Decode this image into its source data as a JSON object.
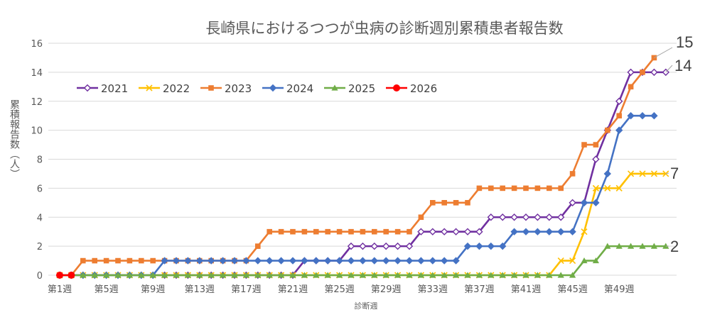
{
  "chart_data": {
    "type": "line",
    "title": "長崎県におけるつつが虫病の診断週別累積患者報告数",
    "xlabel": "診断週",
    "ylabel": "累積報告数（人）",
    "ylim": [
      0,
      16
    ],
    "yticks": [
      0,
      2,
      4,
      6,
      8,
      10,
      12,
      14,
      16
    ],
    "grid": true,
    "legend": "top-left",
    "x_tick_labels": [
      {
        "week": 1,
        "label": "第1週"
      },
      {
        "week": 5,
        "label": "第5週"
      },
      {
        "week": 9,
        "label": "第9週"
      },
      {
        "week": 13,
        "label": "第13週"
      },
      {
        "week": 17,
        "label": "第17週"
      },
      {
        "week": 21,
        "label": "第21週"
      },
      {
        "week": 25,
        "label": "第25週"
      },
      {
        "week": 29,
        "label": "第29週"
      },
      {
        "week": 33,
        "label": "第33週"
      },
      {
        "week": 37,
        "label": "第37週"
      },
      {
        "week": 41,
        "label": "第41週"
      },
      {
        "week": 45,
        "label": "第45週"
      },
      {
        "week": 49,
        "label": "第49週"
      }
    ],
    "end_labels": [
      {
        "text": "15",
        "series": "2023"
      },
      {
        "text": "14",
        "series": "2021"
      },
      {
        "text": "7",
        "series": "2022"
      },
      {
        "text": "2",
        "series": "2025"
      }
    ],
    "series": [
      {
        "name": "2021",
        "color": "#7030a0",
        "marker": "diamond-open",
        "start_week": 1,
        "values": [
          0,
          0,
          0,
          0,
          0,
          0,
          0,
          0,
          0,
          0,
          0,
          0,
          0,
          0,
          0,
          0,
          0,
          0,
          0,
          0,
          0,
          1,
          1,
          1,
          1,
          2,
          2,
          2,
          2,
          2,
          2,
          3,
          3,
          3,
          3,
          3,
          3,
          4,
          4,
          4,
          4,
          4,
          4,
          4,
          5,
          5,
          8,
          10,
          12,
          14,
          14,
          14,
          14
        ]
      },
      {
        "name": "2022",
        "color": "#ffc000",
        "marker": "x",
        "start_week": 1,
        "values": [
          0,
          0,
          0,
          0,
          0,
          0,
          0,
          0,
          0,
          0,
          0,
          0,
          0,
          0,
          0,
          0,
          0,
          0,
          0,
          0,
          0,
          0,
          0,
          0,
          0,
          0,
          0,
          0,
          0,
          0,
          0,
          0,
          0,
          0,
          0,
          0,
          0,
          0,
          0,
          0,
          0,
          0,
          0,
          1,
          1,
          3,
          6,
          6,
          6,
          7,
          7,
          7,
          7
        ]
      },
      {
        "name": "2023",
        "color": "#ed7d31",
        "marker": "square",
        "start_week": 1,
        "values": [
          0,
          0,
          1,
          1,
          1,
          1,
          1,
          1,
          1,
          1,
          1,
          1,
          1,
          1,
          1,
          1,
          1,
          2,
          3,
          3,
          3,
          3,
          3,
          3,
          3,
          3,
          3,
          3,
          3,
          3,
          3,
          4,
          5,
          5,
          5,
          5,
          6,
          6,
          6,
          6,
          6,
          6,
          6,
          6,
          7,
          9,
          9,
          10,
          11,
          13,
          14,
          15
        ]
      },
      {
        "name": "2024",
        "color": "#4472c4",
        "marker": "diamond",
        "start_week": 1,
        "values": [
          0,
          0,
          0,
          0,
          0,
          0,
          0,
          0,
          0,
          1,
          1,
          1,
          1,
          1,
          1,
          1,
          1,
          1,
          1,
          1,
          1,
          1,
          1,
          1,
          1,
          1,
          1,
          1,
          1,
          1,
          1,
          1,
          1,
          1,
          1,
          2,
          2,
          2,
          2,
          3,
          3,
          3,
          3,
          3,
          3,
          5,
          5,
          7,
          10,
          11,
          11,
          11
        ]
      },
      {
        "name": "2025",
        "color": "#70ad47",
        "marker": "triangle",
        "start_week": 1,
        "values": [
          0,
          0,
          0,
          0,
          0,
          0,
          0,
          0,
          0,
          0,
          0,
          0,
          0,
          0,
          0,
          0,
          0,
          0,
          0,
          0,
          0,
          0,
          0,
          0,
          0,
          0,
          0,
          0,
          0,
          0,
          0,
          0,
          0,
          0,
          0,
          0,
          0,
          0,
          0,
          0,
          0,
          0,
          0,
          0,
          0,
          1,
          1,
          2,
          2,
          2,
          2,
          2,
          2
        ]
      },
      {
        "name": "2026",
        "color": "#ff0000",
        "marker": "circle",
        "start_week": 1,
        "values": [
          0,
          0
        ]
      }
    ]
  }
}
